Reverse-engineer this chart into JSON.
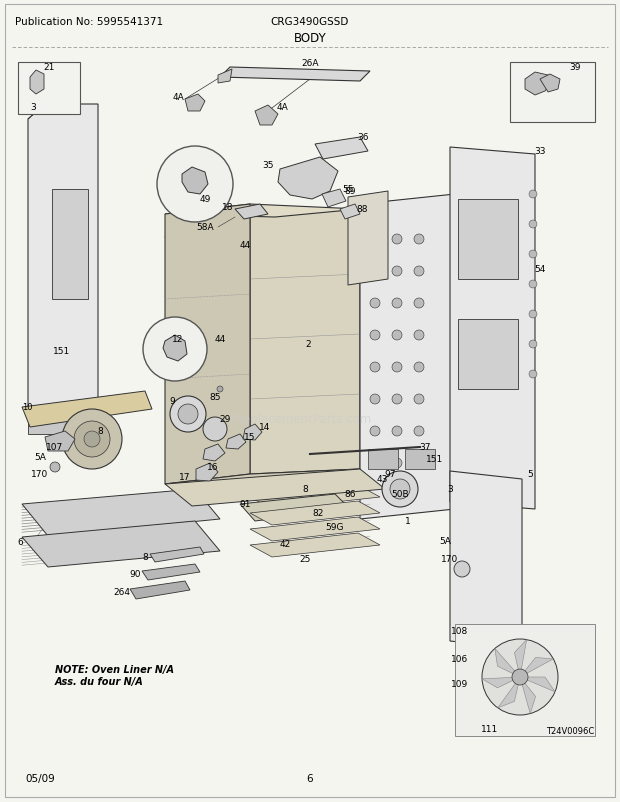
{
  "title": "BODY",
  "header_left": "Publication No: 5995541371",
  "header_center": "CRG3490GSSD",
  "footer_left": "05/09",
  "footer_center": "6",
  "note_line1": "NOTE: Oven Liner N/A",
  "note_line2": "Ass. du four N/A",
  "watermark": "eReplacementParts.com",
  "bg_color": "#f5f5f0",
  "text_color": "#000000",
  "line_color": "#333333",
  "part_fill": "#e0e0e0",
  "part_fill2": "#d0d0d0",
  "part_fill3": "#c8c8c8",
  "header_font_size": 7.5,
  "title_font_size": 8.5,
  "note_font_size": 7,
  "label_font_size": 6.5
}
